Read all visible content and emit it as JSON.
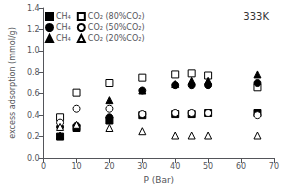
{
  "chart_data": {
    "type": "scatter",
    "annotation": "333K",
    "xlabel": "P (Bar)",
    "ylabel": "excess adsorption (mmol/g)",
    "xlim": [
      0,
      70
    ],
    "ylim": [
      0.0,
      1.4
    ],
    "xticks": [
      0,
      10,
      20,
      30,
      40,
      50,
      60,
      70
    ],
    "yticks": [
      {
        "value": 0.0,
        "label": "0.0"
      },
      0.2,
      0.4,
      0.6,
      0.8,
      {
        "value": 1.0,
        "label": "1.0"
      },
      1.2,
      1.4
    ],
    "grid": false,
    "legend": "upper left",
    "series": [
      {
        "name": "CH₄",
        "marker": "square",
        "color": "black",
        "x": [
          5,
          10,
          20,
          30,
          40,
          45,
          50,
          65
        ],
        "values": [
          0.2,
          0.28,
          0.35,
          0.4,
          0.41,
          0.41,
          0.42,
          0.42
        ]
      },
      {
        "name": "CO₂ (80%CO₂)",
        "marker": "square",
        "color": "white",
        "x": [
          5,
          10,
          20,
          30,
          40,
          45,
          50,
          65
        ],
        "values": [
          0.38,
          0.61,
          0.7,
          0.75,
          0.78,
          0.79,
          0.77,
          0.66
        ]
      },
      {
        "name": "CH₄",
        "marker": "circle",
        "color": "black",
        "x": [
          5,
          10,
          20,
          30,
          40,
          45,
          50,
          65
        ],
        "values": [
          0.29,
          0.3,
          0.38,
          0.63,
          0.68,
          0.68,
          0.68,
          0.7
        ]
      },
      {
        "name": "CO₂ (50%CO₂)",
        "marker": "circle",
        "color": "white",
        "x": [
          5,
          10,
          20,
          30,
          40,
          45,
          50,
          65
        ],
        "values": [
          0.33,
          0.46,
          0.46,
          0.41,
          0.42,
          0.42,
          0.42,
          0.4
        ]
      },
      {
        "name": "CH₄",
        "marker": "triangle",
        "color": "black",
        "x": [
          5,
          10,
          20,
          30,
          40,
          45,
          50,
          65
        ],
        "values": [
          0.21,
          0.3,
          0.54,
          0.63,
          0.69,
          0.72,
          0.72,
          0.78
        ]
      },
      {
        "name": "CO₂ (20%CO₂)",
        "marker": "triangle",
        "color": "white",
        "x": [
          5,
          10,
          20,
          30,
          40,
          45,
          50,
          65
        ],
        "values": [
          0.29,
          0.31,
          0.28,
          0.25,
          0.21,
          0.21,
          0.21,
          0.21
        ]
      }
    ]
  }
}
